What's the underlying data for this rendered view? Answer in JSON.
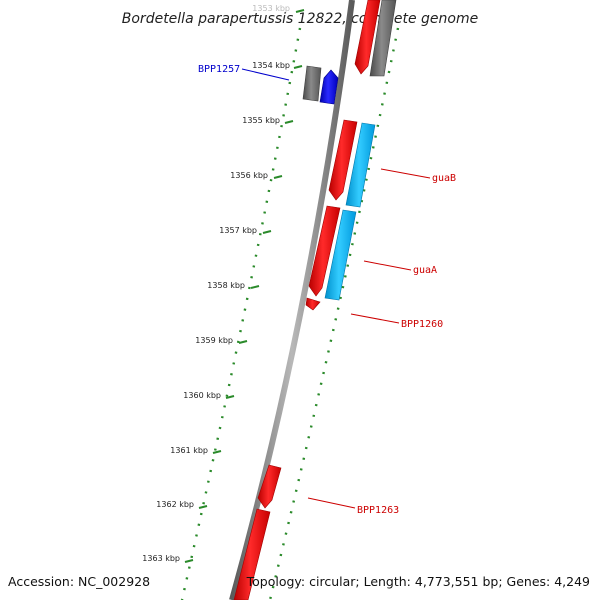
{
  "title": "Bordetella parapertussis 12822, complete genome",
  "footer": {
    "accession": "Accession: NC_002928",
    "topology": "Topology: circular; Length: 4,773,551 bp; Genes: 4,249"
  },
  "ticks": [
    {
      "label": "1353 kbp",
      "faint": true
    },
    {
      "label": "1354 kbp"
    },
    {
      "label": "1355 kbp"
    },
    {
      "label": "1356 kbp"
    },
    {
      "label": "1357 kbp"
    },
    {
      "label": "1358 kbp"
    },
    {
      "label": "1359 kbp"
    },
    {
      "label": "1360 kbp"
    },
    {
      "label": "1361 kbp"
    },
    {
      "label": "1362 kbp"
    },
    {
      "label": "1363 kbp"
    }
  ],
  "gene_labels": [
    {
      "name": "BPP1257",
      "color": "#0000cc"
    },
    {
      "name": "guaB",
      "color": "#cc0000"
    },
    {
      "name": "guaA",
      "color": "#cc0000"
    },
    {
      "name": "BPP1260",
      "color": "#cc0000"
    },
    {
      "name": "BPP1263",
      "color": "#cc0000"
    }
  ],
  "colors": {
    "backbone": "#8a8a8a",
    "tick_green": "#2a8a2a",
    "gene_red": "#ff0000",
    "gene_blue": "#0000ff",
    "gene_cyan": "#00bfff",
    "gene_grey": "#707070"
  }
}
